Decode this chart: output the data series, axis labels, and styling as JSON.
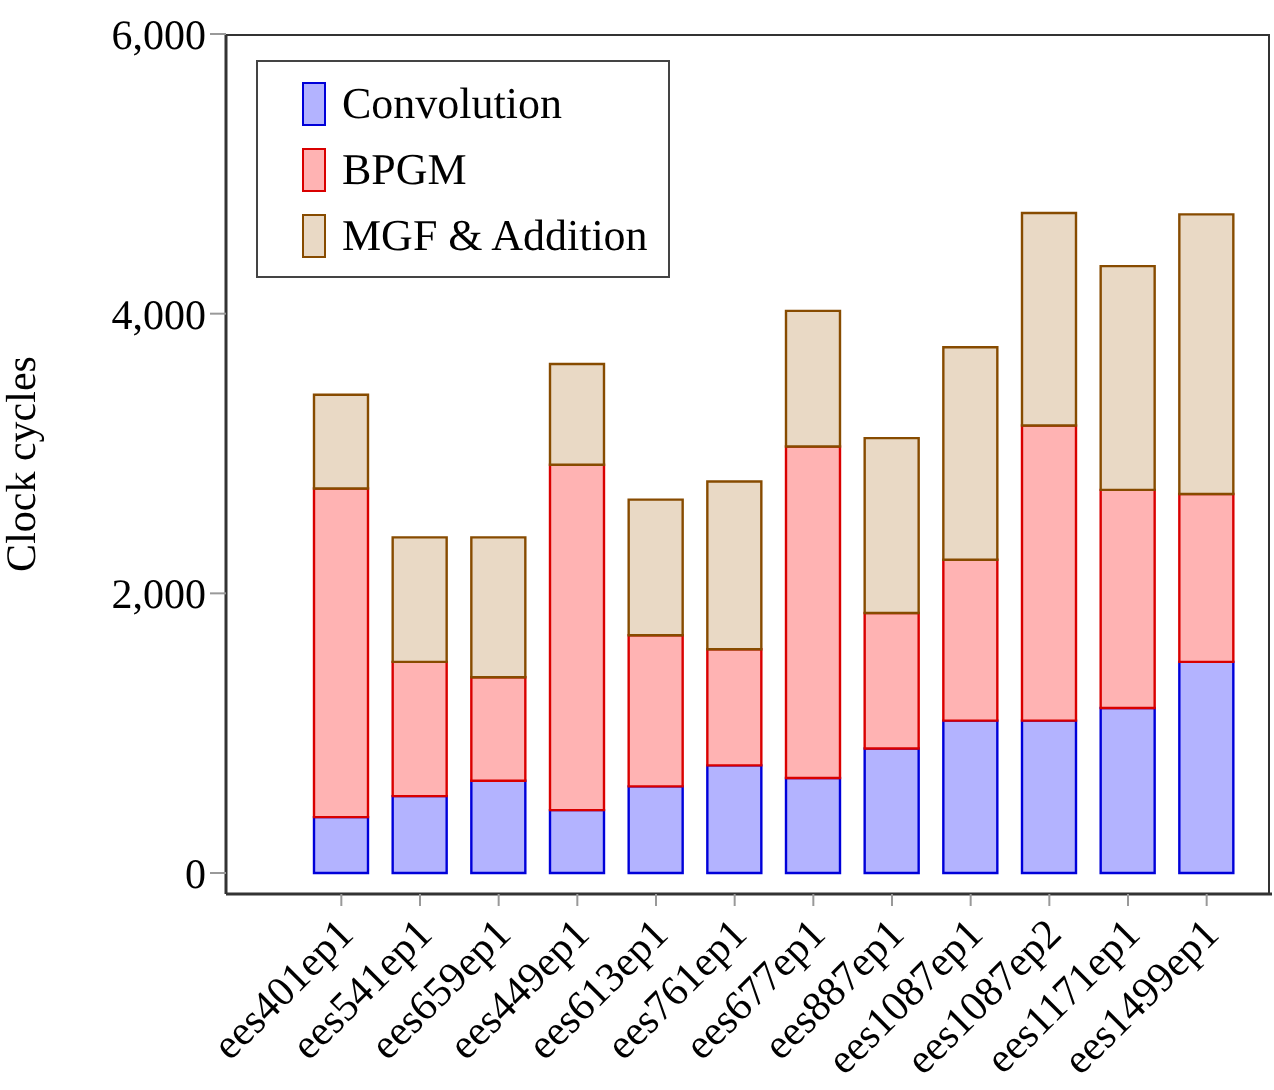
{
  "chart_data": {
    "type": "bar",
    "stacked": true,
    "ylabel": "Clock cycles",
    "categories": [
      "ees401ep1",
      "ees541ep1",
      "ees659ep1",
      "ees449ep1",
      "ees613ep1",
      "ees761ep1",
      "ees677ep1",
      "ees887ep1",
      "ees1087ep1",
      "ees1087ep2",
      "ees1171ep1",
      "ees1499ep1"
    ],
    "series": [
      {
        "name": "Convolution",
        "color": "#b3b3ff",
        "values": [
          400,
          550,
          660,
          450,
          620,
          770,
          680,
          890,
          1090,
          1090,
          1180,
          1510
        ]
      },
      {
        "name": "BPGM",
        "color": "#ffb3b3",
        "values": [
          2350,
          960,
          740,
          2470,
          1080,
          830,
          2370,
          970,
          1150,
          2110,
          1560,
          1200
        ]
      },
      {
        "name": "MGF & Addition",
        "color": "#e9d9c5",
        "values": [
          670,
          890,
          1000,
          720,
          970,
          1200,
          970,
          1250,
          1520,
          1520,
          1600,
          2000
        ]
      }
    ],
    "ylim": [
      -150,
      6000
    ],
    "yticks": [
      0,
      {
        "value": 2000,
        "label": "2,000"
      },
      {
        "value": 4000,
        "label": "4,000"
      },
      {
        "value": 6000,
        "label": "6,000"
      }
    ],
    "legend": "top left",
    "grid": false
  }
}
